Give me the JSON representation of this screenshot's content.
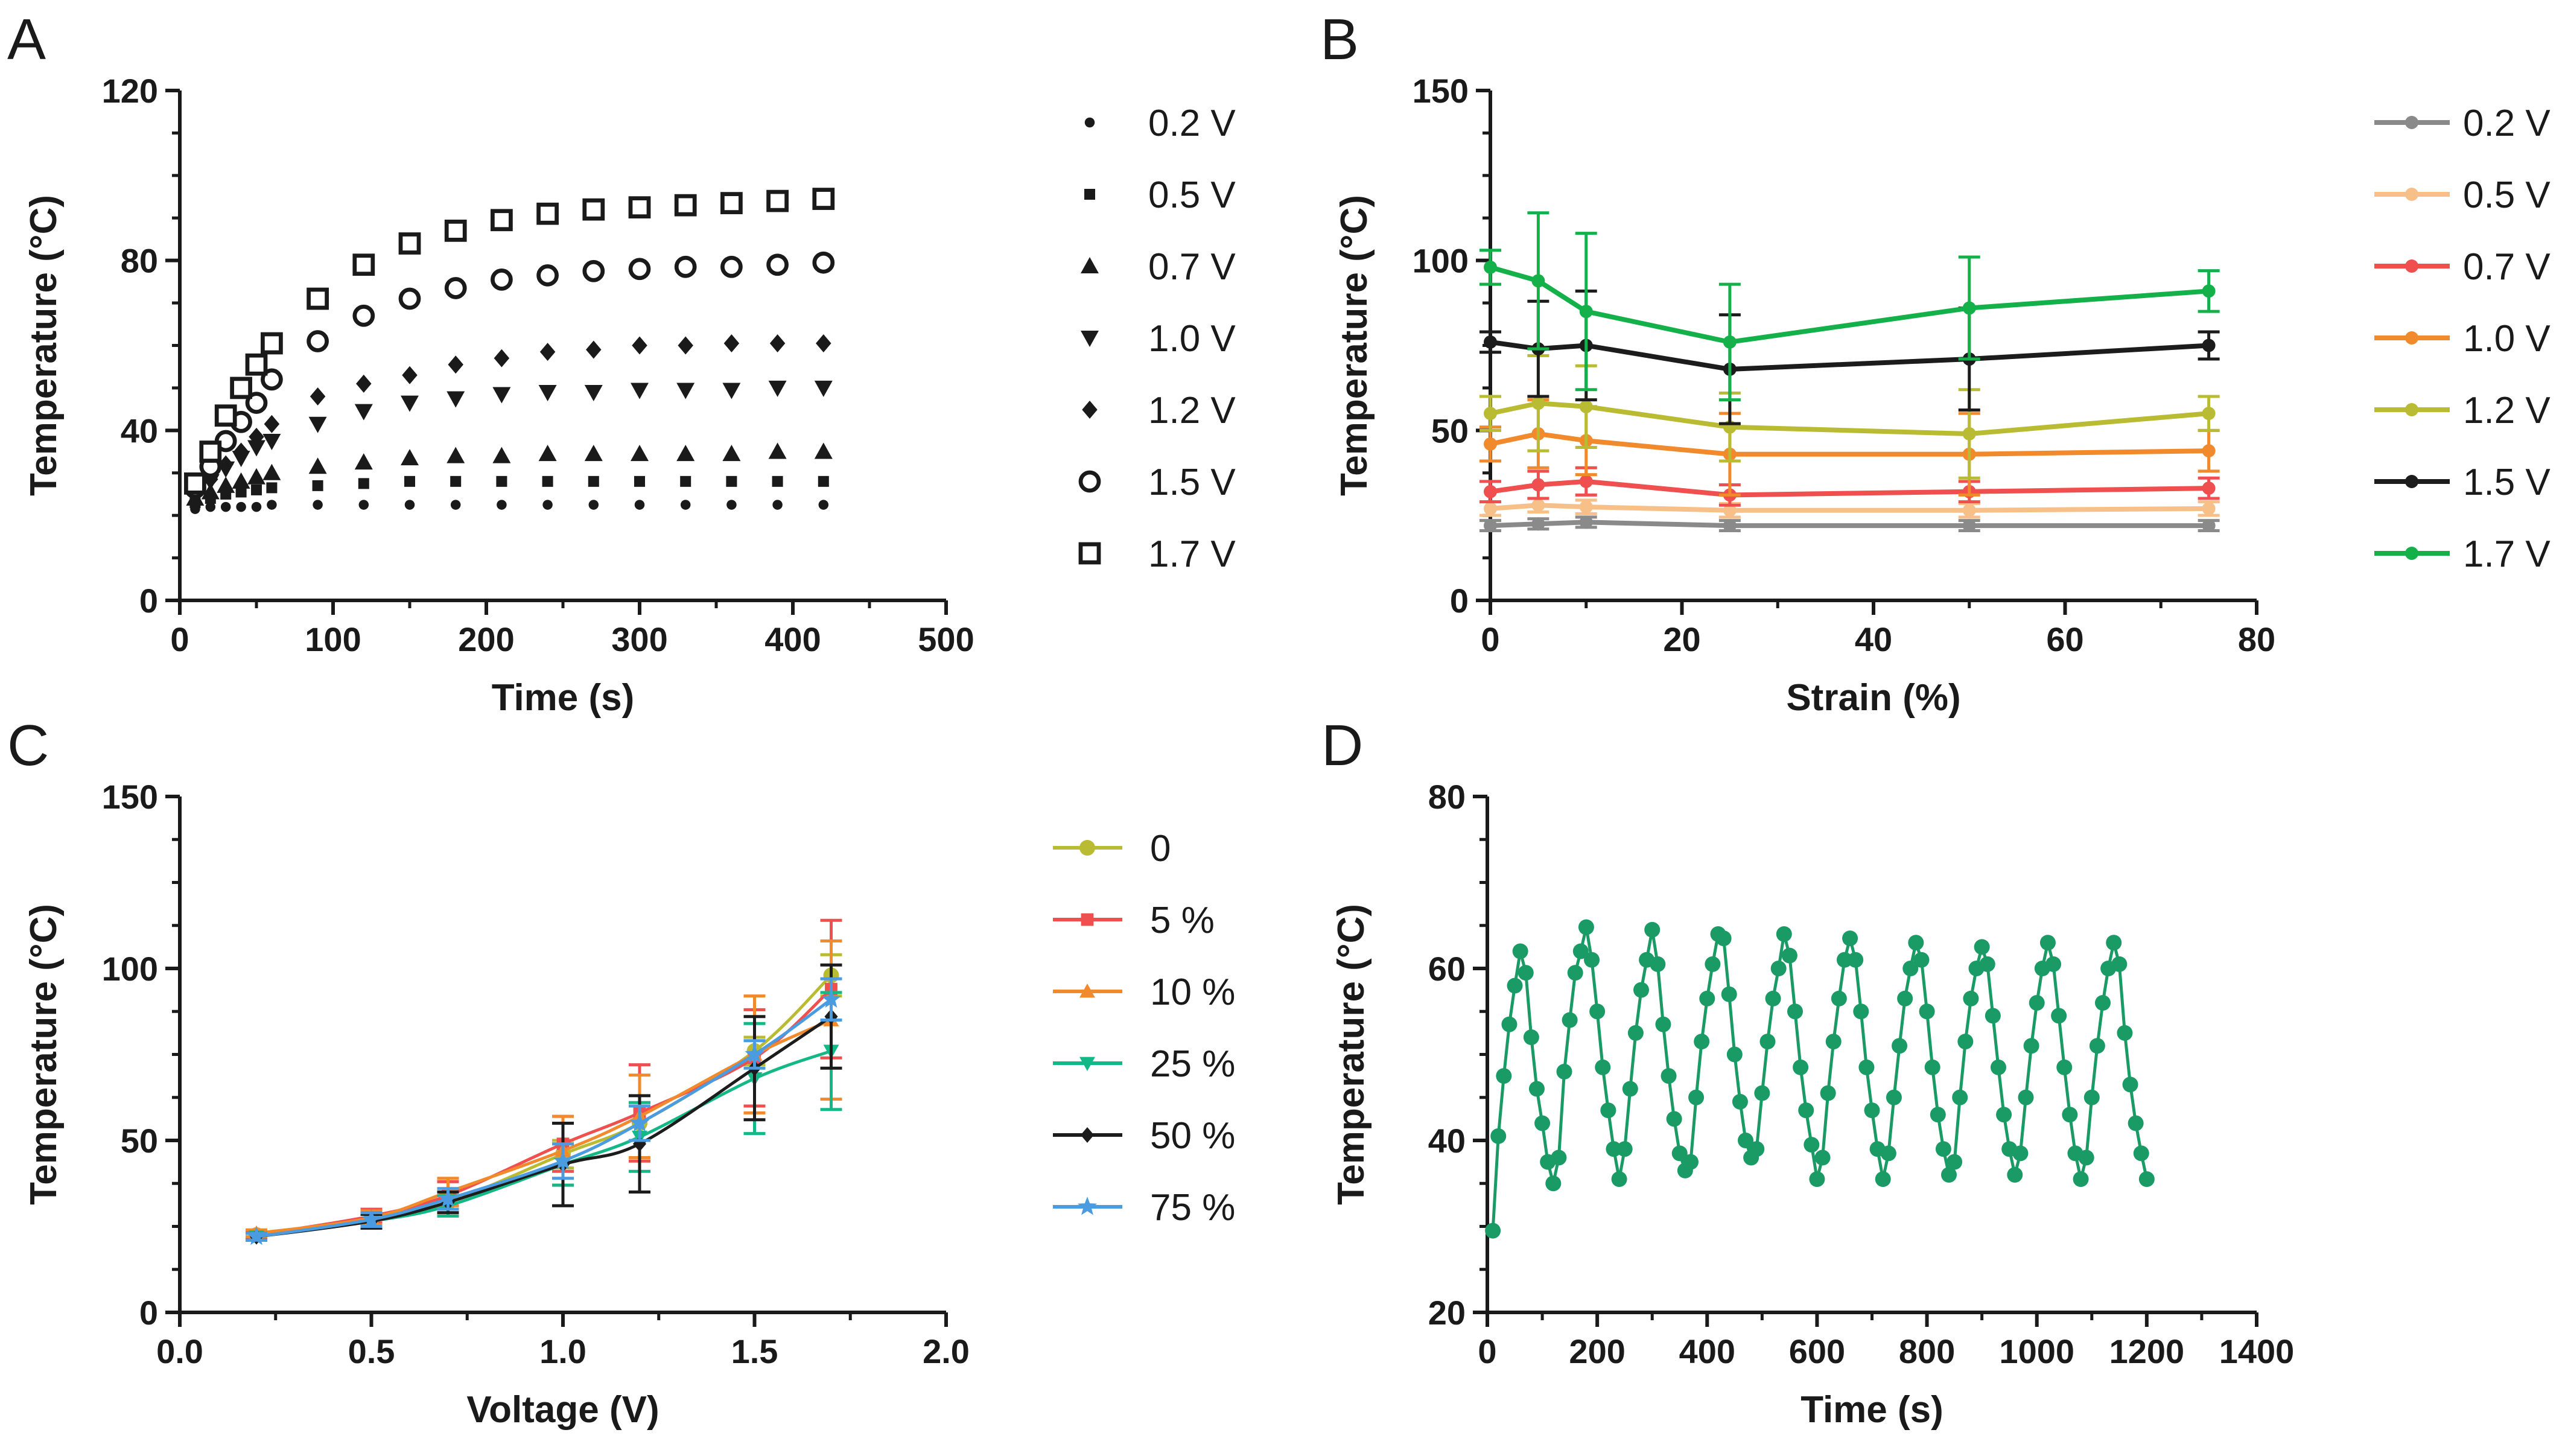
{
  "chart_data": [
    {
      "panel": "A",
      "type": "scatter",
      "xlabel": "Time (s)",
      "ylabel": "Temperature (°C)",
      "xlim": [
        0,
        500
      ],
      "ylim": [
        0,
        120
      ],
      "xticks": [
        0,
        100,
        200,
        300,
        400,
        500
      ],
      "yticks": [
        0,
        40,
        80,
        120
      ],
      "legend_position": "right",
      "x": [
        10,
        20,
        30,
        40,
        50,
        60,
        90,
        120,
        150,
        180,
        210,
        240,
        270,
        300,
        330,
        360,
        390,
        420
      ],
      "series": [
        {
          "name": "0.2 V",
          "marker": "circle-small",
          "values": [
            21.5,
            22,
            22,
            22,
            22,
            22.5,
            22.5,
            22.5,
            22.5,
            22.5,
            22.5,
            22.5,
            22.5,
            22.5,
            22.5,
            22.5,
            22.5,
            22.5
          ]
        },
        {
          "name": "0.5 V",
          "marker": "square-small",
          "values": [
            23,
            24,
            25,
            25.5,
            26,
            26.5,
            27,
            27.5,
            28,
            28,
            28,
            28,
            28,
            28,
            28,
            28,
            28,
            28
          ]
        },
        {
          "name": "0.7 V",
          "marker": "triangle-up",
          "values": [
            24,
            25.5,
            27,
            28,
            29,
            30,
            31.5,
            32.5,
            33.5,
            34,
            34,
            34.5,
            34.5,
            34.5,
            34.5,
            34.5,
            35,
            35
          ]
        },
        {
          "name": "1.0 V",
          "marker": "triangle-down",
          "values": [
            25,
            28,
            31,
            33.5,
            36,
            37.5,
            41.5,
            44.5,
            46.5,
            47.5,
            48.5,
            49,
            49,
            49.5,
            49.5,
            49.5,
            50,
            50
          ]
        },
        {
          "name": "1.2 V",
          "marker": "diamond",
          "values": [
            25.5,
            28.5,
            32,
            35,
            38.5,
            41.5,
            48,
            51,
            53,
            55.5,
            57,
            58.5,
            59,
            60,
            60,
            60.5,
            60.5,
            60.5
          ]
        },
        {
          "name": "1.5 V",
          "marker": "circle-open",
          "values": [
            26.5,
            31.5,
            37.5,
            42,
            46.5,
            52,
            61,
            67,
            71,
            73.5,
            75.5,
            76.5,
            77.5,
            78,
            78.5,
            78.5,
            79,
            79.5
          ]
        },
        {
          "name": "1.7 V",
          "marker": "square-open",
          "values": [
            27.5,
            35,
            43.5,
            50,
            55.5,
            60.5,
            71,
            79,
            84,
            87,
            89.5,
            91,
            92,
            92.5,
            93,
            93.5,
            94,
            94.5
          ]
        }
      ]
    },
    {
      "panel": "B",
      "type": "line",
      "xlabel": "Strain (%)",
      "ylabel": "Temperature (°C)",
      "xlim": [
        0,
        80
      ],
      "ylim": [
        0,
        150
      ],
      "xticks": [
        0,
        20,
        40,
        60,
        80
      ],
      "yticks": [
        0,
        50,
        100,
        150
      ],
      "legend_position": "right",
      "x": [
        0,
        5,
        10,
        25,
        50,
        75
      ],
      "series": [
        {
          "name": "0.2 V",
          "color": "#8a8a8a",
          "values": [
            22,
            22.5,
            23,
            22,
            22,
            22
          ],
          "errors": [
            1.5,
            1.5,
            1.5,
            1.5,
            1.5,
            1.5
          ]
        },
        {
          "name": "0.5 V",
          "color": "#f6c088",
          "values": [
            27,
            28,
            27.5,
            26.5,
            26.5,
            27
          ],
          "errors": [
            2,
            2,
            2,
            2,
            2,
            2
          ]
        },
        {
          "name": "0.7 V",
          "color": "#ef4f4f",
          "values": [
            32,
            34,
            35,
            31,
            32,
            33
          ],
          "errors": [
            3,
            4,
            4,
            3,
            3,
            3
          ]
        },
        {
          "name": "1.0 V",
          "color": "#f08a2c",
          "values": [
            46,
            49,
            47,
            43,
            43,
            44
          ],
          "errors": [
            5,
            10,
            10,
            12,
            12,
            6
          ]
        },
        {
          "name": "1.2 V",
          "color": "#b9bc33",
          "values": [
            55,
            58,
            57,
            51,
            49,
            55
          ],
          "errors": [
            5,
            14,
            12,
            10,
            13,
            5
          ]
        },
        {
          "name": "1.5 V",
          "color": "#1c1c1c",
          "values": [
            76,
            74,
            75,
            68,
            71,
            75
          ],
          "errors": [
            3,
            14,
            16,
            16,
            15,
            4
          ]
        },
        {
          "name": "1.7 V",
          "color": "#14b14b",
          "values": [
            98,
            94,
            85,
            76,
            86,
            91
          ],
          "errors": [
            5,
            20,
            23,
            17,
            15,
            6
          ]
        }
      ]
    },
    {
      "panel": "C",
      "type": "line",
      "xlabel": "Voltage (V)",
      "ylabel": "Temperature (°C)",
      "xlim": [
        0,
        2
      ],
      "ylim": [
        0,
        150
      ],
      "xticks": [
        "0.0",
        "0.5",
        "1.0",
        "1.5",
        "2.0"
      ],
      "yticks": [
        0,
        50,
        100,
        150
      ],
      "legend_position": "right",
      "x": [
        0.2,
        0.5,
        0.7,
        1.0,
        1.2,
        1.5,
        1.7
      ],
      "series": [
        {
          "name": "0",
          "color": "#b9bc33",
          "marker": "circle",
          "values": [
            22.5,
            27,
            32,
            46,
            55,
            76,
            98
          ],
          "errors": [
            1,
            1.5,
            3,
            4,
            5,
            4,
            6
          ]
        },
        {
          "name": "5 %",
          "color": "#ef4f4f",
          "marker": "square",
          "values": [
            22.5,
            28,
            34,
            49,
            58,
            74,
            94
          ],
          "errors": [
            1,
            2,
            4,
            8,
            14,
            14,
            20
          ]
        },
        {
          "name": "10 %",
          "color": "#f08a2c",
          "marker": "triangle-up",
          "values": [
            23,
            27.5,
            35,
            47,
            57,
            75,
            85
          ],
          "errors": [
            1,
            2,
            4,
            10,
            12,
            17,
            23
          ]
        },
        {
          "name": "25 %",
          "color": "#14b886",
          "marker": "triangle-down",
          "values": [
            22,
            26.5,
            31,
            43,
            51,
            68,
            76
          ],
          "errors": [
            1,
            2,
            3,
            6,
            10,
            16,
            17
          ]
        },
        {
          "name": "50 %",
          "color": "#1c1c1c",
          "marker": "diamond",
          "values": [
            22,
            26.5,
            32,
            43,
            49,
            71,
            86
          ],
          "errors": [
            1,
            2,
            3,
            12,
            14,
            15,
            15
          ]
        },
        {
          "name": "75 %",
          "color": "#4b9be0",
          "marker": "star",
          "values": [
            22,
            27,
            33,
            44,
            55,
            75,
            91
          ],
          "errors": [
            1,
            2,
            3,
            5,
            5,
            4,
            6
          ]
        }
      ]
    },
    {
      "panel": "D",
      "type": "line",
      "xlabel": "Time (s)",
      "ylabel": "Temperature (°C)",
      "xlim": [
        0,
        1400
      ],
      "ylim": [
        20,
        80
      ],
      "xticks": [
        0,
        200,
        400,
        600,
        800,
        1000,
        1200,
        1400
      ],
      "yticks": [
        20,
        40,
        60,
        80
      ],
      "color": "#1a9a64",
      "x": [
        10,
        20,
        30,
        40,
        50,
        60,
        70,
        80,
        90,
        100,
        110,
        120,
        130,
        140,
        150,
        160,
        170,
        180,
        190,
        200,
        210,
        220,
        230,
        240,
        250,
        260,
        270,
        280,
        290,
        300,
        310,
        320,
        330,
        340,
        350,
        360,
        370,
        380,
        390,
        400,
        410,
        420,
        430,
        440,
        450,
        460,
        470,
        480,
        490,
        500,
        510,
        520,
        530,
        540,
        550,
        560,
        570,
        580,
        590,
        600,
        610,
        620,
        630,
        640,
        650,
        660,
        670,
        680,
        690,
        700,
        710,
        720,
        730,
        740,
        750,
        760,
        770,
        780,
        790,
        800,
        810,
        820,
        830,
        840,
        850,
        860,
        870,
        880,
        890,
        900,
        910,
        920,
        930,
        940,
        950,
        960,
        970,
        980,
        990,
        1000,
        1010,
        1020,
        1030,
        1040,
        1050,
        1060,
        1070,
        1080,
        1090,
        1100,
        1110,
        1120,
        1130,
        1140,
        1150,
        1160,
        1170,
        1180,
        1190,
        1200
      ],
      "values": [
        29.5,
        40.5,
        47.5,
        53.5,
        58,
        62,
        59.5,
        52,
        46,
        42,
        37.5,
        35,
        38,
        48,
        54,
        59.5,
        62,
        64.8,
        61,
        55,
        48.5,
        43.5,
        39,
        35.5,
        39,
        46,
        52.5,
        57.5,
        61,
        64.5,
        60.5,
        53.5,
        47.5,
        42.5,
        38.5,
        36.5,
        37.5,
        45,
        51.5,
        56.5,
        60.5,
        64,
        63.5,
        57,
        50,
        44.5,
        40,
        38,
        39,
        45.5,
        51.5,
        56.5,
        60,
        64,
        61.5,
        55,
        48.5,
        43.5,
        39.5,
        35.5,
        38,
        45.5,
        51.5,
        56.5,
        61,
        63.5,
        61,
        55,
        48.5,
        43.5,
        39,
        35.5,
        38.5,
        45,
        51,
        56.5,
        60,
        63,
        61,
        55,
        48.5,
        43,
        39,
        36,
        37.5,
        45,
        51.5,
        56.5,
        60,
        62.5,
        60.5,
        54.5,
        48.5,
        43,
        39,
        36,
        38.5,
        45,
        51,
        56,
        60,
        63,
        60.5,
        54.5,
        48.5,
        43,
        38.5,
        35.5,
        38,
        45,
        51,
        56,
        60,
        63,
        60.5,
        52.5,
        46.5,
        42,
        38.5,
        35.5
      ]
    }
  ]
}
